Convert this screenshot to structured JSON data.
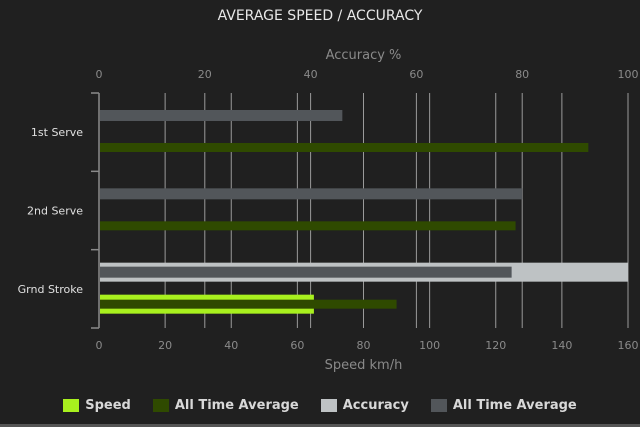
{
  "chart_data": {
    "type": "bar",
    "orientation": "horizontal",
    "title": "AVERAGE SPEED / ACCURACY",
    "categories": [
      "1st Serve",
      "2nd Serve",
      "Grnd Stroke"
    ],
    "x_top": {
      "label": "Accuracy %",
      "range": [
        0,
        100
      ],
      "ticks": [
        "0",
        "20",
        "40",
        "60",
        "80",
        "100"
      ]
    },
    "x_bottom": {
      "label": "Speed km/h",
      "range": [
        0,
        160
      ],
      "ticks": [
        "0",
        "20",
        "40",
        "60",
        "80",
        "100",
        "120",
        "140",
        "160"
      ]
    },
    "grid": true,
    "legend_placement": "bottom",
    "series": [
      {
        "name": "Speed",
        "axis": "bottom",
        "color": "#a8f01e",
        "values": [
          null,
          null,
          65
        ]
      },
      {
        "name": "All Time Average",
        "axis": "bottom",
        "color": "#2f4a00",
        "values": [
          148,
          126,
          90
        ]
      },
      {
        "name": "Accuracy",
        "axis": "top",
        "color": "#bec2c4",
        "values": [
          null,
          null,
          100
        ]
      },
      {
        "name": "All Time Average",
        "axis": "top",
        "color": "#52565a",
        "values": [
          46,
          80,
          78
        ]
      }
    ]
  }
}
